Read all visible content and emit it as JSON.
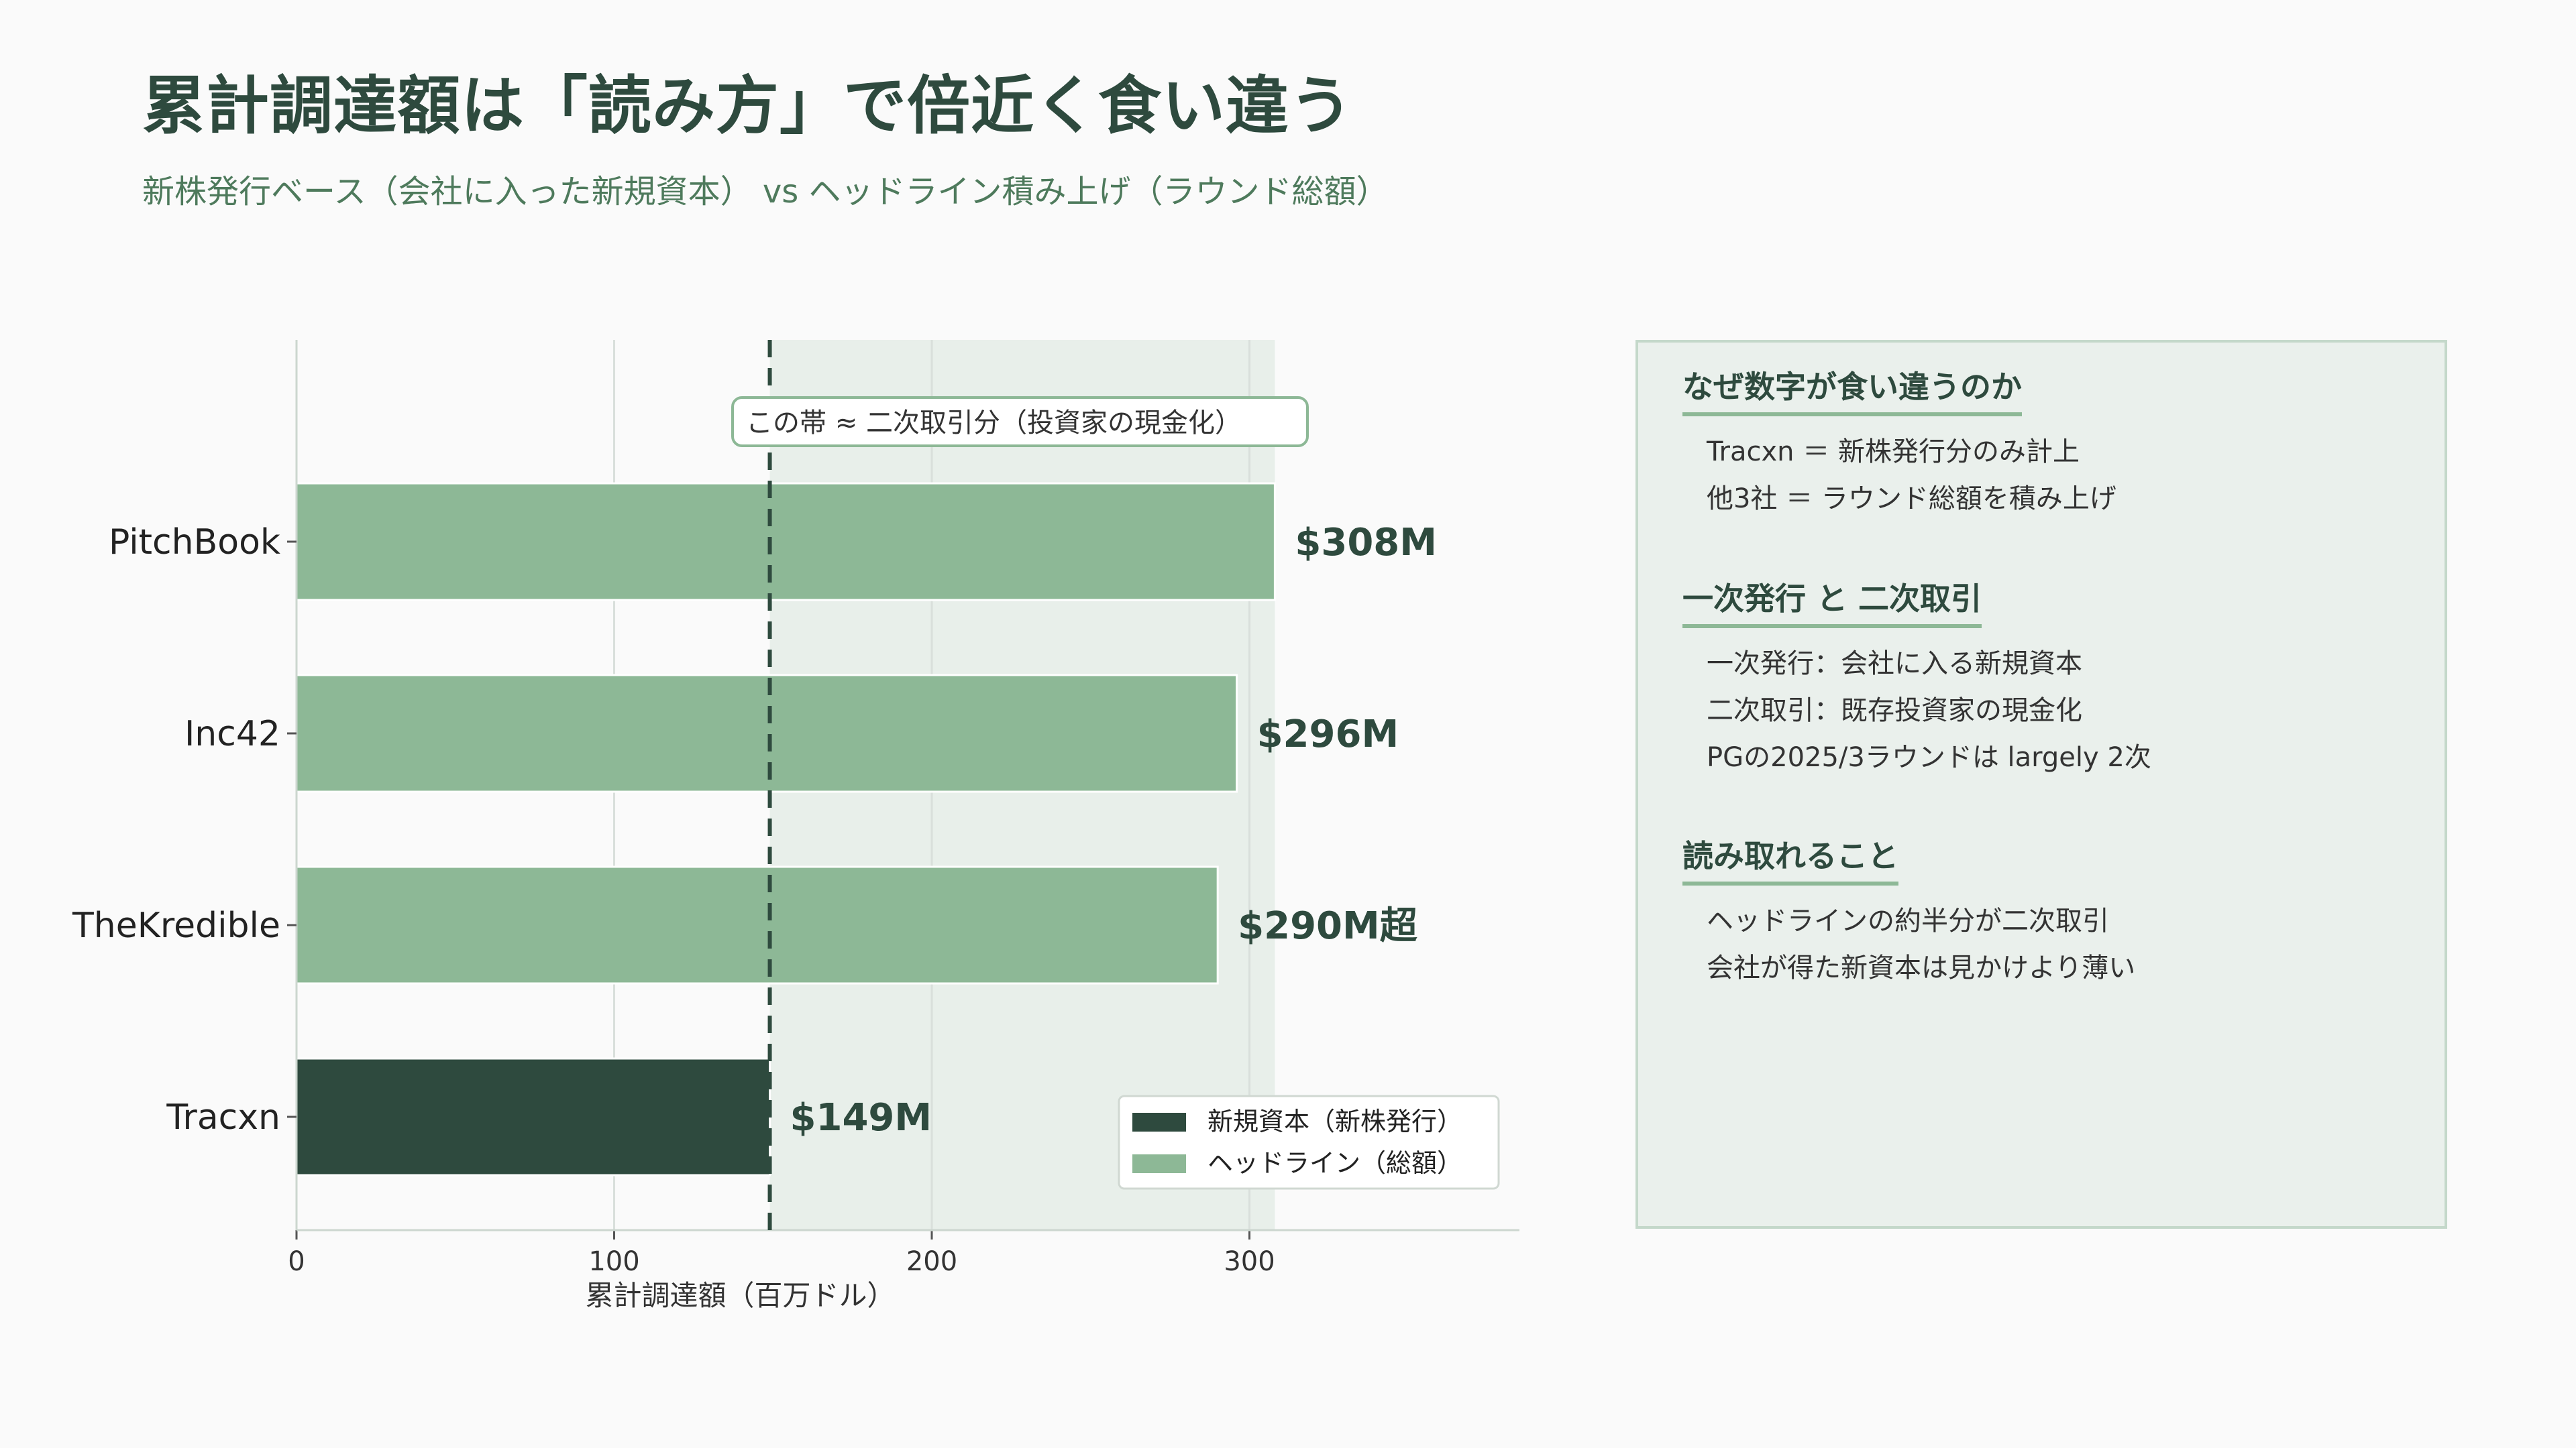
{
  "title": "累計調達額は「読み方」で倍近く食い違う",
  "subtitle": "新株発行ベース（会社に入った新規資本） vs ヘッドライン積み上げ（ラウンド総額）",
  "colors": {
    "primary": "#2e4a3e",
    "headline": "#8db896",
    "band": "#e8efea"
  },
  "chart_data": {
    "type": "bar",
    "orientation": "horizontal",
    "categories": [
      "PitchBook",
      "Inc42",
      "TheKredible",
      "Tracxn"
    ],
    "values": [
      308,
      296,
      290,
      149
    ],
    "value_labels": [
      "$308M",
      "$296M",
      "$290M超",
      "$149M"
    ],
    "series_of": [
      "ヘッドライン（総額）",
      "ヘッドライン（総額）",
      "ヘッドライン（総額）",
      "新規資本（新株発行）"
    ],
    "xlabel": "累計調達額（百万ドル）",
    "xlim": [
      0,
      385
    ],
    "xticks": [
      0,
      100,
      200,
      300
    ],
    "grid": true,
    "reference_line": 149,
    "shaded_band": [
      149,
      308
    ],
    "annotation": "この帯 ≈ 二次取引分（投資家の現金化）",
    "legend": {
      "position": "bottom-right",
      "entries": [
        {
          "label": "新規資本（新株発行）",
          "color": "#2e4a3e"
        },
        {
          "label": "ヘッドライン（総額）",
          "color": "#8db896"
        }
      ]
    }
  },
  "panel": {
    "sections": [
      {
        "heading": "なぜ数字が食い違うのか",
        "lines": [
          "Tracxn ＝ 新株発行分のみ計上",
          "他3社 ＝ ラウンド総額を積み上げ"
        ]
      },
      {
        "heading": "一次発行 と 二次取引",
        "lines": [
          "一次発行：会社に入る新規資本",
          "二次取引：既存投資家の現金化",
          "PGの2025/3ラウンドは largely 2次"
        ]
      },
      {
        "heading": "読み取れること",
        "lines": [
          "ヘッドラインの約半分が二次取引",
          "会社が得た新資本は見かけより薄い"
        ]
      }
    ]
  }
}
